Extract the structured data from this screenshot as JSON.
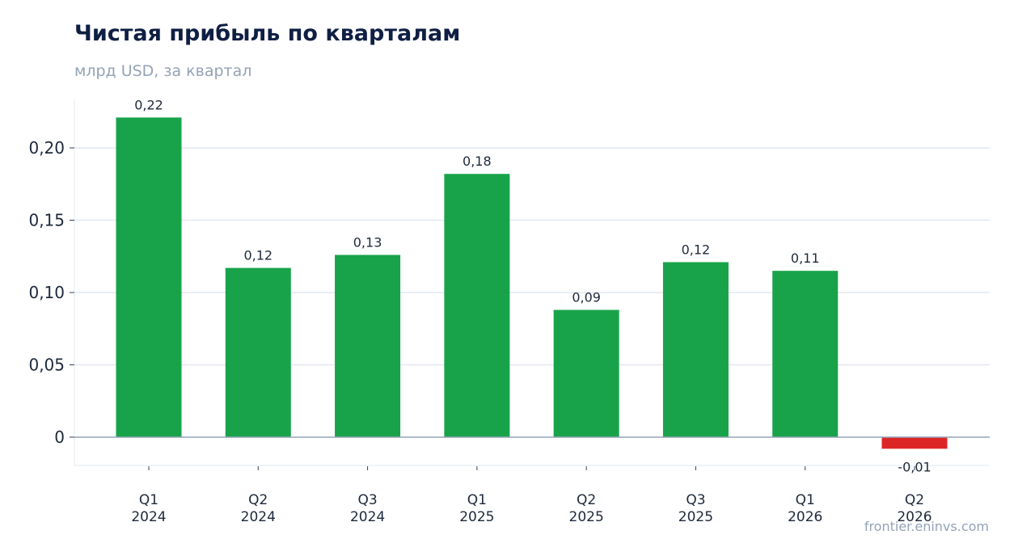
{
  "chart_data": {
    "type": "bar",
    "title": "Чистая прибыль по кварталам",
    "subtitle": "млрд USD, за квартал",
    "categories": [
      {
        "quarter": "Q1",
        "year": "2024"
      },
      {
        "quarter": "Q2",
        "year": "2024"
      },
      {
        "quarter": "Q3",
        "year": "2024"
      },
      {
        "quarter": "Q1",
        "year": "2025"
      },
      {
        "quarter": "Q2",
        "year": "2025"
      },
      {
        "quarter": "Q3",
        "year": "2025"
      },
      {
        "quarter": "Q1",
        "year": "2026"
      },
      {
        "quarter": "Q2",
        "year": "2026"
      }
    ],
    "values": [
      0.221,
      0.117,
      0.126,
      0.182,
      0.088,
      0.121,
      0.115,
      -0.008
    ],
    "value_labels": [
      "0,22",
      "0,12",
      "0,13",
      "0,18",
      "0,09",
      "0,12",
      "0,11",
      "-0,01"
    ],
    "yticks": [
      0,
      0.05,
      0.1,
      0.15,
      0.2
    ],
    "ytick_labels": [
      "0",
      "0,05",
      "0,10",
      "0,15",
      "0,20"
    ],
    "ylim": [
      -0.02,
      0.234
    ],
    "grid": true,
    "colors": {
      "positive": "#18a34a",
      "negative": "#dc2626",
      "grid": "#e2e8f0",
      "zero_line": "#94a3b8"
    }
  },
  "source": "frontier.eninvs.com"
}
